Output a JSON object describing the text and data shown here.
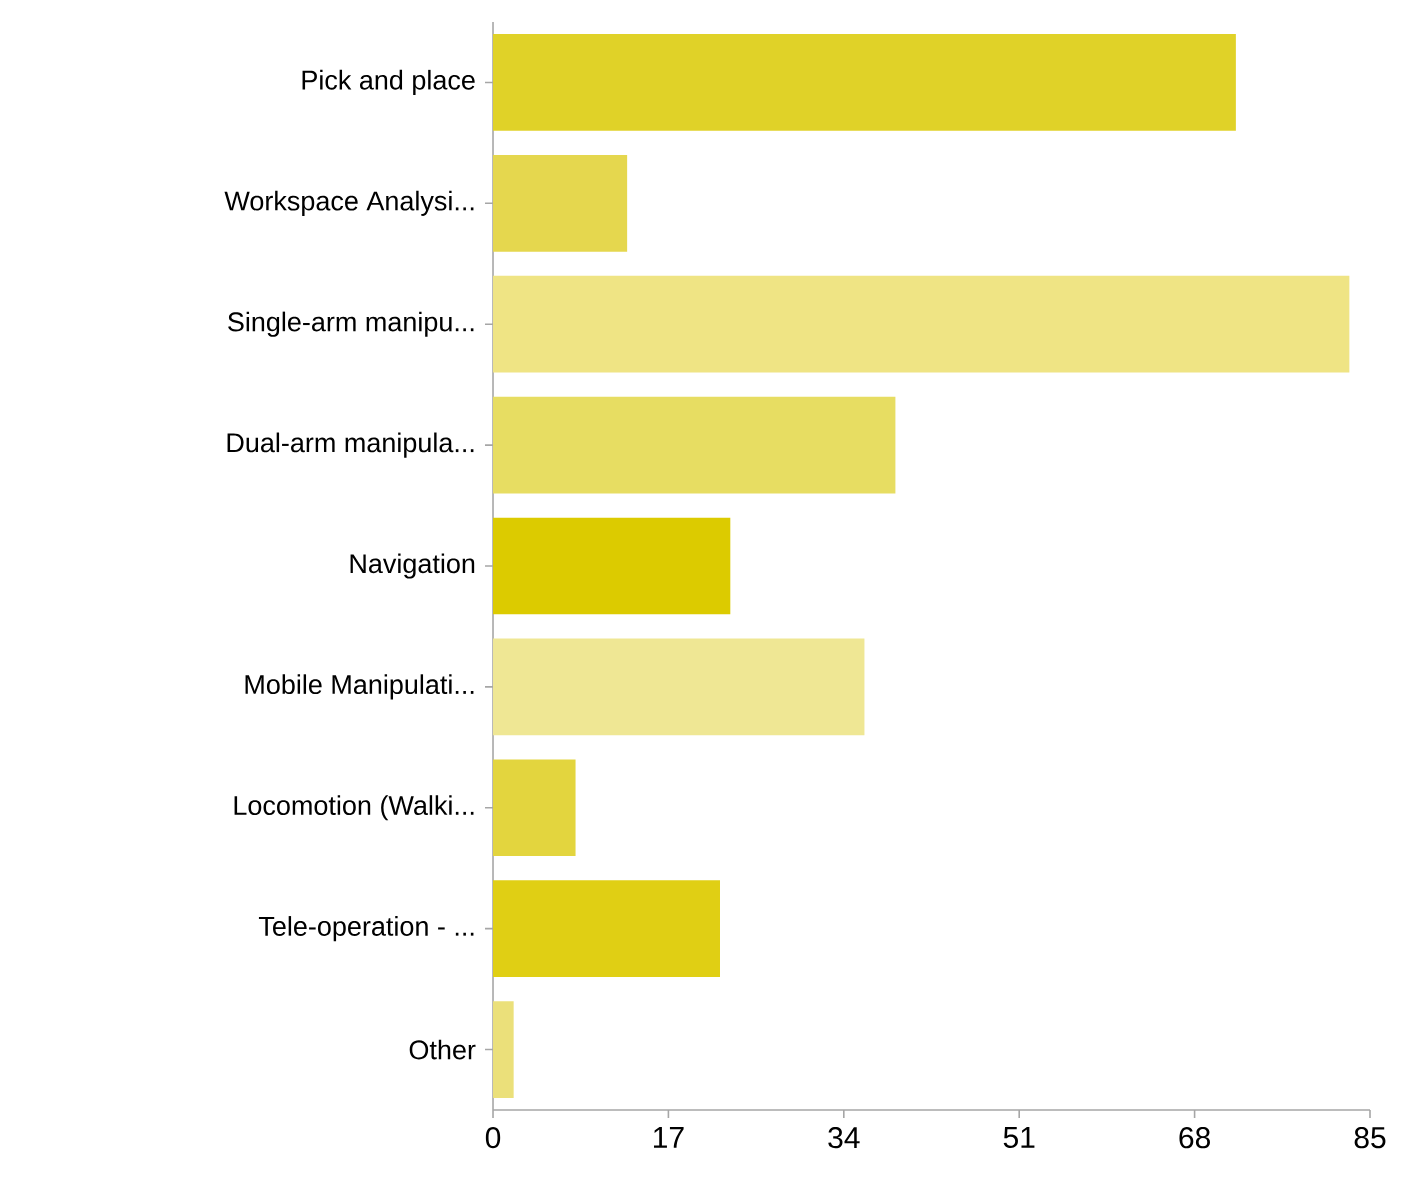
{
  "chart_data": {
    "type": "bar",
    "orientation": "horizontal",
    "categories": [
      "Pick and place",
      "Workspace Analysi...",
      "Single-arm manipu...",
      "Dual-arm manipula...",
      "Navigation",
      "Mobile Manipulati...",
      "Locomotion (Walki...",
      "Tele-operation - ...",
      "Other"
    ],
    "values": [
      72,
      13,
      83,
      39,
      23,
      36,
      8,
      22,
      2
    ],
    "colors": [
      "#e0d228",
      "#e5d74e",
      "#efe484",
      "#e7dd62",
      "#dccb00",
      "#efe794",
      "#e3d53e",
      "#e0cf14",
      "#ebe07a"
    ],
    "xlim": [
      0,
      85
    ],
    "xticks": [
      0,
      17,
      34,
      51,
      68,
      85
    ]
  }
}
